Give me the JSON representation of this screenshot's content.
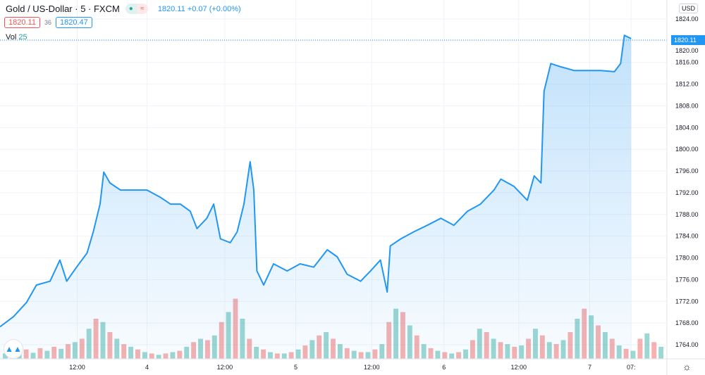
{
  "header": {
    "title": "Gold / US-Dollar · 5 · FXCM",
    "status_dot": "●",
    "status_wave": "≈",
    "last": "1820.11",
    "change": "+0.07 (+0.00%)"
  },
  "quote": {
    "bid": "1820.11",
    "spread": "36",
    "ask": "1820.47"
  },
  "volume_indicator": {
    "label": "Vol",
    "value": "25"
  },
  "axis": {
    "currency": "USD",
    "settings_icon": "☼"
  },
  "colors": {
    "line": "#2196f3",
    "up": "#26a69a",
    "down": "#ef5350"
  },
  "chart_data": {
    "type": "area",
    "title": "Gold / US-Dollar · 5 · FXCM",
    "xlabel": "",
    "ylabel": "USD",
    "xlim": [
      0,
      108
    ],
    "ylim": [
      1762.5,
      1826
    ],
    "grid": true,
    "current_price": "1820.11",
    "y_ticks": [
      "1764.00",
      "1768.00",
      "1772.00",
      "1776.00",
      "1780.00",
      "1784.00",
      "1788.00",
      "1792.00",
      "1796.00",
      "1800.00",
      "1804.00",
      "1808.00",
      "1812.00",
      "1816.00",
      "1820.00",
      "1824.00"
    ],
    "x_ticks": [
      {
        "x": 12.5,
        "label": "12:00"
      },
      {
        "x": 23.8,
        "label": "4"
      },
      {
        "x": 36.4,
        "label": "12:00"
      },
      {
        "x": 47.9,
        "label": "5"
      },
      {
        "x": 60.2,
        "label": "12:00"
      },
      {
        "x": 71.9,
        "label": "6"
      },
      {
        "x": 84.0,
        "label": "12:00"
      },
      {
        "x": 95.5,
        "label": "7"
      },
      {
        "x": 102.2,
        "label": "07:"
      }
    ],
    "price": {
      "x": [
        0,
        2.2,
        4.3,
        5.9,
        8.1,
        9.7,
        10.8,
        12.4,
        14.1,
        15.1,
        16.2,
        16.8,
        17.8,
        19.5,
        21.6,
        23.8,
        25.9,
        27.6,
        29.2,
        30.8,
        31.9,
        33.5,
        34.6,
        35.7,
        37.3,
        38.4,
        39.5,
        40.5,
        41.1,
        41.6,
        42.7,
        44.3,
        46.5,
        48.6,
        50.8,
        53,
        54.6,
        56.2,
        58.4,
        60,
        61.6,
        62.7,
        63.2,
        64.9,
        67,
        69.2,
        71.4,
        73.5,
        75.7,
        77.8,
        80,
        81.1,
        83.2,
        85.4,
        86.5,
        87.6,
        88.1,
        89.2,
        90.8,
        93,
        95.1,
        97.3,
        99.5,
        100.5,
        101.1,
        102.2
      ],
      "y": [
        1767.3,
        1769.2,
        1771.8,
        1775.0,
        1775.7,
        1779.6,
        1775.7,
        1778.3,
        1780.9,
        1784.8,
        1789.9,
        1795.8,
        1793.8,
        1792.5,
        1792.5,
        1792.5,
        1791.2,
        1789.9,
        1789.9,
        1788.6,
        1785.4,
        1787.3,
        1789.9,
        1783.5,
        1782.8,
        1784.8,
        1789.9,
        1797.7,
        1792.5,
        1777.6,
        1775.0,
        1778.9,
        1777.6,
        1778.9,
        1778.3,
        1781.5,
        1780.2,
        1777.0,
        1775.7,
        1777.6,
        1779.6,
        1773.7,
        1782.2,
        1783.5,
        1784.8,
        1786.0,
        1787.3,
        1786.0,
        1788.6,
        1789.9,
        1792.5,
        1794.5,
        1793.2,
        1790.6,
        1795.1,
        1793.8,
        1810.7,
        1815.8,
        1815.2,
        1814.5,
        1814.5,
        1814.5,
        1814.3,
        1815.8,
        1821.0,
        1820.4
      ]
    },
    "volume": {
      "max": 100,
      "values": [
        8,
        12,
        10,
        14,
        9,
        16,
        12,
        18,
        15,
        22,
        25,
        30,
        45,
        60,
        55,
        40,
        30,
        22,
        18,
        14,
        10,
        8,
        6,
        8,
        10,
        12,
        18,
        25,
        30,
        28,
        35,
        55,
        70,
        90,
        60,
        30,
        18,
        14,
        10,
        8,
        8,
        10,
        14,
        20,
        28,
        35,
        40,
        30,
        22,
        16,
        12,
        10,
        10,
        14,
        22,
        55,
        75,
        70,
        50,
        35,
        22,
        16,
        12,
        10,
        8,
        10,
        14,
        28,
        45,
        40,
        30,
        25,
        22,
        18,
        20,
        30,
        45,
        35,
        25,
        22,
        28,
        40,
        60,
        75,
        65,
        50,
        40,
        30,
        20,
        15,
        12,
        30,
        38,
        25,
        18
      ],
      "colors": [
        "u",
        "d",
        "u",
        "d",
        "u",
        "d",
        "u",
        "d",
        "u",
        "d",
        "u",
        "d",
        "u",
        "d",
        "u",
        "d",
        "u",
        "d",
        "u",
        "d",
        "u",
        "d",
        "u",
        "d",
        "u",
        "d",
        "u",
        "d",
        "u",
        "d",
        "u",
        "d",
        "u",
        "d",
        "u",
        "d",
        "u",
        "d",
        "u",
        "d",
        "u",
        "d",
        "u",
        "d",
        "u",
        "d",
        "u",
        "d",
        "u",
        "d",
        "u",
        "d",
        "u",
        "d",
        "u",
        "d",
        "u",
        "d",
        "u",
        "d",
        "u",
        "d",
        "u",
        "d",
        "u",
        "d",
        "u",
        "d",
        "u",
        "d",
        "u",
        "d",
        "u",
        "d",
        "u",
        "d",
        "u",
        "d",
        "u",
        "d",
        "u",
        "d",
        "u",
        "d",
        "u",
        "d",
        "u",
        "d",
        "u",
        "d",
        "u",
        "d",
        "u",
        "d",
        "u"
      ]
    }
  }
}
